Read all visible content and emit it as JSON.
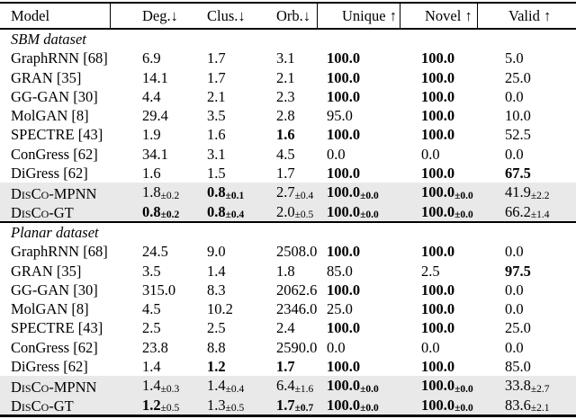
{
  "colors": {
    "background": "#ffffff",
    "rule": "#000000",
    "row_highlight": "#e9e9e9",
    "text": "#000000"
  },
  "table": {
    "columns": [
      {
        "key": "model",
        "label": "Model"
      },
      {
        "key": "deg",
        "label": "Deg.↓"
      },
      {
        "key": "clus",
        "label": "Clus.↓"
      },
      {
        "key": "orb",
        "label": "Orb.↓"
      },
      {
        "key": "unique",
        "label": "Unique ↑"
      },
      {
        "key": "novel",
        "label": "Novel ↑"
      },
      {
        "key": "valid",
        "label": "Valid ↑"
      }
    ],
    "sections": [
      {
        "title": "SBM dataset",
        "rows": [
          {
            "model": "GraphRNN [68]",
            "cells": [
              {
                "v": "6.9"
              },
              {
                "v": "1.7"
              },
              {
                "v": "3.1"
              },
              {
                "v": "100.0",
                "b": true
              },
              {
                "v": "100.0",
                "b": true
              },
              {
                "v": "5.0"
              }
            ]
          },
          {
            "model": "GRAN [35]",
            "cells": [
              {
                "v": "14.1"
              },
              {
                "v": "1.7"
              },
              {
                "v": "2.1"
              },
              {
                "v": "100.0",
                "b": true
              },
              {
                "v": "100.0",
                "b": true
              },
              {
                "v": "25.0"
              }
            ]
          },
          {
            "model": "GG-GAN [30]",
            "cells": [
              {
                "v": "4.4"
              },
              {
                "v": "2.1"
              },
              {
                "v": "2.3"
              },
              {
                "v": "100.0",
                "b": true
              },
              {
                "v": "100.0",
                "b": true
              },
              {
                "v": "0.0"
              }
            ]
          },
          {
            "model": "MolGAN [8]",
            "cells": [
              {
                "v": "29.4"
              },
              {
                "v": "3.5"
              },
              {
                "v": "2.8"
              },
              {
                "v": "95.0"
              },
              {
                "v": "100.0",
                "b": true
              },
              {
                "v": "10.0"
              }
            ]
          },
          {
            "model": "SPECTRE [43]",
            "cells": [
              {
                "v": "1.9"
              },
              {
                "v": "1.6"
              },
              {
                "v": "1.6",
                "b": true
              },
              {
                "v": "100.0",
                "b": true
              },
              {
                "v": "100.0",
                "b": true
              },
              {
                "v": "52.5"
              }
            ]
          },
          {
            "model": "ConGress [62]",
            "cells": [
              {
                "v": "34.1"
              },
              {
                "v": "3.1"
              },
              {
                "v": "4.5"
              },
              {
                "v": "0.0"
              },
              {
                "v": "0.0"
              },
              {
                "v": "0.0"
              }
            ]
          },
          {
            "model": "DiGress [62]",
            "cells": [
              {
                "v": "1.6"
              },
              {
                "v": "1.5"
              },
              {
                "v": "1.7"
              },
              {
                "v": "100.0",
                "b": true
              },
              {
                "v": "100.0",
                "b": true
              },
              {
                "v": "67.5",
                "b": true
              }
            ]
          },
          {
            "model": "DisCo-MPNN",
            "sc": true,
            "hl": true,
            "cells": [
              {
                "v": "1.8",
                "pm": "±0.2"
              },
              {
                "v": "0.8",
                "pm": "±0.1",
                "b": true,
                "pb": true
              },
              {
                "v": "2.7",
                "pm": "±0.4"
              },
              {
                "v": "100.0",
                "pm": "±0.0",
                "b": true,
                "pb": true
              },
              {
                "v": "100.0",
                "pm": "±0.0",
                "b": true,
                "pb": true
              },
              {
                "v": "41.9",
                "pm": "±2.2"
              }
            ]
          },
          {
            "model": "DisCo-GT",
            "sc": true,
            "hl": true,
            "cells": [
              {
                "v": "0.8",
                "pm": "±0.2",
                "b": true,
                "pb": true
              },
              {
                "v": "0.8",
                "pm": "±0.4",
                "b": true,
                "pb": true
              },
              {
                "v": "2.0",
                "pm": "±0.5"
              },
              {
                "v": "100.0",
                "pm": "±0.0",
                "b": true,
                "pb": true
              },
              {
                "v": "100.0",
                "pm": "±0.0",
                "b": true,
                "pb": true
              },
              {
                "v": "66.2",
                "pm": "±1.4"
              }
            ]
          }
        ]
      },
      {
        "title": "Planar dataset",
        "rows": [
          {
            "model": "GraphRNN [68]",
            "cells": [
              {
                "v": "24.5"
              },
              {
                "v": "9.0"
              },
              {
                "v": "2508.0"
              },
              {
                "v": "100.0",
                "b": true
              },
              {
                "v": "100.0",
                "b": true
              },
              {
                "v": "0.0"
              }
            ]
          },
          {
            "model": "GRAN [35]",
            "cells": [
              {
                "v": "3.5"
              },
              {
                "v": "1.4"
              },
              {
                "v": "1.8"
              },
              {
                "v": "85.0"
              },
              {
                "v": "2.5"
              },
              {
                "v": "97.5",
                "b": true
              }
            ]
          },
          {
            "model": "GG-GAN [30]",
            "cells": [
              {
                "v": "315.0"
              },
              {
                "v": "8.3"
              },
              {
                "v": "2062.6"
              },
              {
                "v": "100.0",
                "b": true
              },
              {
                "v": "100.0",
                "b": true
              },
              {
                "v": "0.0"
              }
            ]
          },
          {
            "model": "MolGAN [8]",
            "cells": [
              {
                "v": "4.5"
              },
              {
                "v": "10.2"
              },
              {
                "v": "2346.0"
              },
              {
                "v": "25.0"
              },
              {
                "v": "100.0",
                "b": true
              },
              {
                "v": "0.0"
              }
            ]
          },
          {
            "model": "SPECTRE [43]",
            "cells": [
              {
                "v": "2.5"
              },
              {
                "v": "2.5"
              },
              {
                "v": "2.4"
              },
              {
                "v": "100.0",
                "b": true
              },
              {
                "v": "100.0",
                "b": true
              },
              {
                "v": "25.0"
              }
            ]
          },
          {
            "model": "ConGress [62]",
            "cells": [
              {
                "v": "23.8"
              },
              {
                "v": "8.8"
              },
              {
                "v": "2590.0"
              },
              {
                "v": "0.0"
              },
              {
                "v": "0.0"
              },
              {
                "v": "0.0"
              }
            ]
          },
          {
            "model": "DiGress [62]",
            "cells": [
              {
                "v": "1.4"
              },
              {
                "v": "1.2",
                "b": true
              },
              {
                "v": "1.7",
                "b": true
              },
              {
                "v": "100.0",
                "b": true
              },
              {
                "v": "100.0",
                "b": true
              },
              {
                "v": "85.0"
              }
            ]
          },
          {
            "model": "DisCo-MPNN",
            "sc": true,
            "hl": true,
            "cells": [
              {
                "v": "1.4",
                "pm": "±0.3"
              },
              {
                "v": "1.4",
                "pm": "±0.4"
              },
              {
                "v": "6.4",
                "pm": "±1.6"
              },
              {
                "v": "100.0",
                "pm": "±0.0",
                "b": true,
                "pb": true
              },
              {
                "v": "100.0",
                "pm": "±0.0",
                "b": true,
                "pb": true
              },
              {
                "v": "33.8",
                "pm": "±2.7"
              }
            ]
          },
          {
            "model": "DisCo-GT",
            "sc": true,
            "hl": true,
            "cells": [
              {
                "v": "1.2",
                "pm": "±0.5",
                "b": true
              },
              {
                "v": "1.3",
                "pm": "±0.5"
              },
              {
                "v": "1.7",
                "pm": "±0.7",
                "b": true,
                "pb": true
              },
              {
                "v": "100.0",
                "pm": "±0.0",
                "b": true,
                "pb": true
              },
              {
                "v": "100.0",
                "pm": "±0.0",
                "b": true,
                "pb": true
              },
              {
                "v": "83.6",
                "pm": "±2.1"
              }
            ]
          }
        ]
      }
    ]
  }
}
